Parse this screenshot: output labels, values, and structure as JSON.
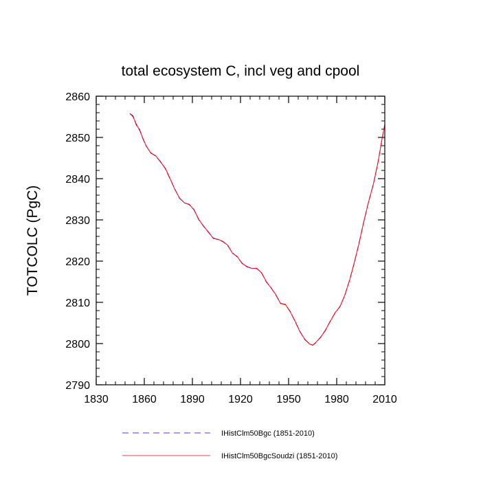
{
  "chart_data": {
    "type": "line",
    "title": "total ecosystem C, incl veg and cpool",
    "xlabel": "",
    "ylabel": "TOTCOLC  (PgC)",
    "xlim": [
      1830,
      2010
    ],
    "ylim": [
      2790,
      2860
    ],
    "xticks": [
      1830,
      1860,
      1890,
      1920,
      1950,
      1980,
      2010
    ],
    "yticks": [
      2790,
      2800,
      2810,
      2820,
      2830,
      2840,
      2850,
      2860
    ],
    "x_minor_step": 6,
    "y_minor_step": 2,
    "grid": false,
    "legend_position": "bottom",
    "series": [
      {
        "name": "IHistClm50Bgc (1851-2010)",
        "color": "#0000ff",
        "dash": "dashed",
        "x": [
          1851,
          1853,
          1855,
          1857,
          1859,
          1861,
          1864,
          1867,
          1870,
          1873,
          1876,
          1879,
          1882,
          1885,
          1888,
          1891,
          1894,
          1897,
          1900,
          1903,
          1906,
          1909,
          1912,
          1915,
          1918,
          1921,
          1924,
          1927,
          1930,
          1933,
          1936,
          1939,
          1942,
          1945,
          1948,
          1951,
          1954,
          1957,
          1960,
          1963,
          1965,
          1967,
          1970,
          1973,
          1976,
          1979,
          1982,
          1985,
          1988,
          1991,
          1994,
          1997,
          2000,
          2003,
          2006,
          2008,
          2010
        ],
        "values": [
          2855.8,
          2855.2,
          2853.0,
          2852.0,
          2849.8,
          2848.0,
          2846.3,
          2845.5,
          2844.2,
          2842.5,
          2840.0,
          2837.5,
          2835.2,
          2834.2,
          2833.7,
          2832.5,
          2830.0,
          2828.5,
          2827.0,
          2825.6,
          2825.2,
          2824.8,
          2823.8,
          2822.0,
          2821.0,
          2819.5,
          2818.6,
          2818.3,
          2818.2,
          2817.3,
          2815.0,
          2813.6,
          2811.8,
          2809.8,
          2809.4,
          2807.8,
          2805.4,
          2803.0,
          2801.0,
          2800.0,
          2799.6,
          2800.2,
          2801.6,
          2803.2,
          2805.5,
          2807.4,
          2809.0,
          2811.6,
          2815.4,
          2819.6,
          2824.5,
          2829.7,
          2834.6,
          2838.8,
          2844.5,
          2849.0,
          2853.0
        ]
      },
      {
        "name": "IHistClm50BgcSoudzi (1851-2010)",
        "color": "#ff0000",
        "dash": "solid",
        "x": [
          1851,
          1853,
          1855,
          1857,
          1859,
          1861,
          1864,
          1867,
          1870,
          1873,
          1876,
          1879,
          1882,
          1885,
          1888,
          1891,
          1894,
          1897,
          1900,
          1903,
          1906,
          1909,
          1912,
          1915,
          1918,
          1921,
          1924,
          1927,
          1930,
          1933,
          1936,
          1939,
          1942,
          1945,
          1948,
          1951,
          1954,
          1957,
          1960,
          1963,
          1965,
          1967,
          1970,
          1973,
          1976,
          1979,
          1982,
          1985,
          1988,
          1991,
          1994,
          1997,
          2000,
          2003,
          2006,
          2008,
          2010
        ],
        "values": [
          2855.8,
          2855.0,
          2853.2,
          2851.8,
          2849.9,
          2848.1,
          2846.2,
          2845.6,
          2844.1,
          2842.6,
          2840.1,
          2837.4,
          2835.3,
          2834.1,
          2833.8,
          2832.4,
          2830.1,
          2828.4,
          2827.1,
          2825.5,
          2825.3,
          2824.7,
          2823.9,
          2821.9,
          2821.1,
          2819.4,
          2818.7,
          2818.2,
          2818.3,
          2817.2,
          2815.1,
          2813.5,
          2811.9,
          2809.7,
          2809.5,
          2807.7,
          2805.5,
          2802.9,
          2801.1,
          2799.9,
          2799.6,
          2800.3,
          2801.5,
          2803.3,
          2805.4,
          2807.5,
          2808.9,
          2811.7,
          2815.3,
          2819.7,
          2824.4,
          2829.8,
          2834.5,
          2838.9,
          2844.4,
          2849.1,
          2853.2
        ]
      }
    ]
  }
}
